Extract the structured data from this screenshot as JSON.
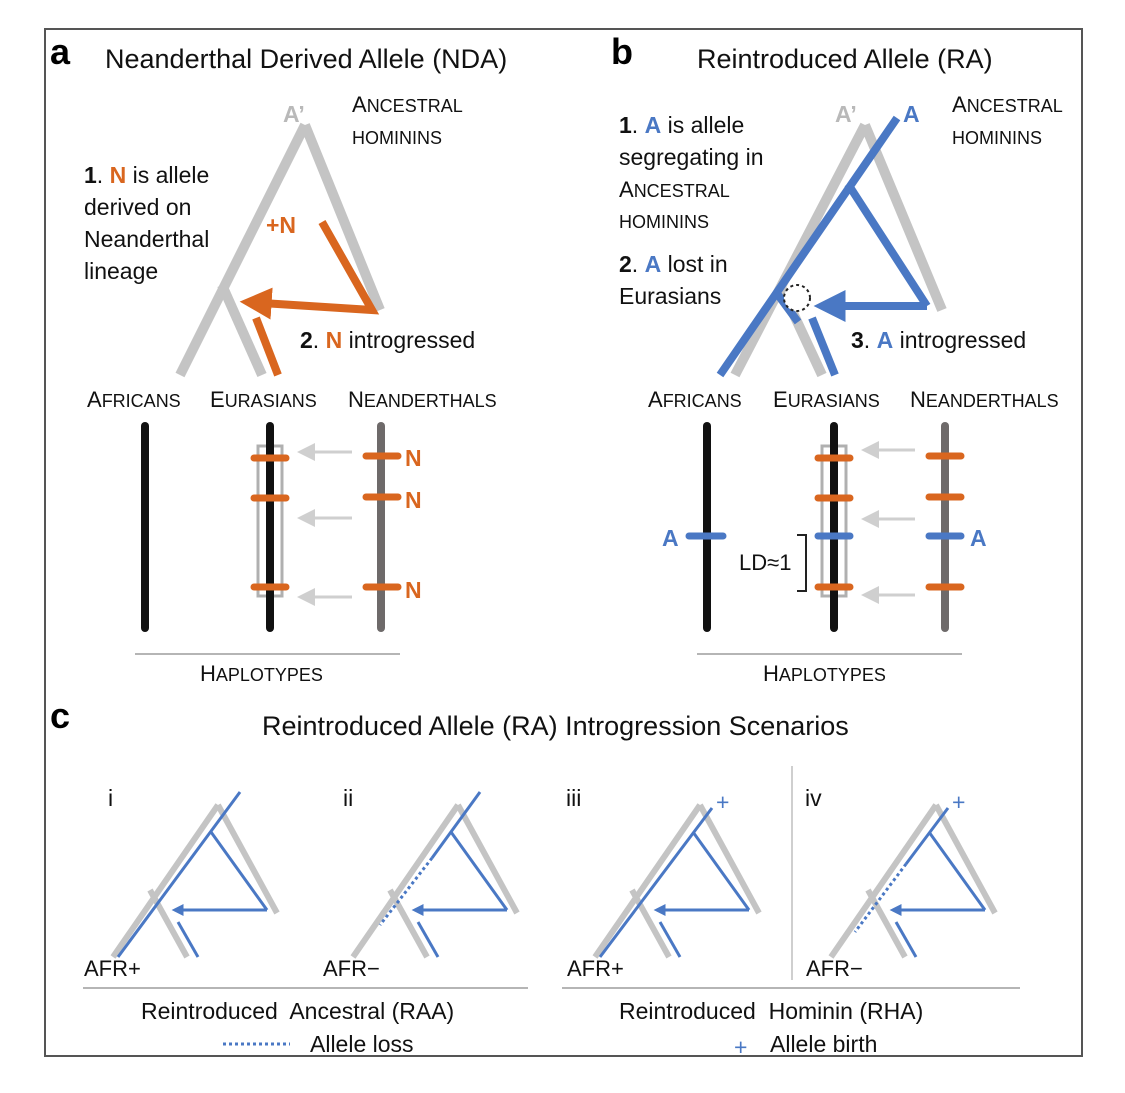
{
  "panel_a": {
    "letter": "a",
    "title": "Neanderthal Derived Allele (NDA)",
    "top_allele": "A’",
    "ancestral_1": "A",
    "ancestral_2": "NCESTRAL",
    "hominins": "HOMININS",
    "step1_num": "1",
    "step1_allele": "N",
    "step1_text_1": "is allele",
    "step1_text_2": "derived on",
    "step1_text_3": "Neanderthal",
    "step1_text_4": "lineage",
    "plus_n": "+N",
    "step2_num": "2",
    "step2_allele": "N",
    "step2_text": "introgressed",
    "pops": [
      {
        "big": "A",
        "small": "FRICANS"
      },
      {
        "big": "E",
        "small": "URASIANS"
      },
      {
        "big": "N",
        "small": "EANDERTHALS"
      }
    ],
    "allele_labels": [
      "N",
      "N",
      "N"
    ],
    "hap_big": "H",
    "hap_small": "APLOTYPES"
  },
  "panel_b": {
    "letter": "b",
    "title": "Reintroduced Allele (RA)",
    "top_grey": "A’",
    "top_blue": "A",
    "ancestral_1": "A",
    "ancestral_2": "NCESTRAL",
    "hominins": "HOMININS",
    "step1_num": "1",
    "step1_allele": "A",
    "step1_text_1": "is allele",
    "step1_text_2": "segregating in",
    "step1_text_3_big": "A",
    "step1_text_3_small": "NCESTRAL",
    "step1_text_4": "HOMININS",
    "step2_num": "2",
    "step2_allele": "A",
    "step2_text_1": "lost in",
    "step2_text_2": "Eurasians",
    "step3_num": "3",
    "step3_allele": "A",
    "step3_text": "introgressed",
    "pops": [
      {
        "big": "A",
        "small": "FRICANS"
      },
      {
        "big": "E",
        "small": "URASIANS"
      },
      {
        "big": "N",
        "small": "EANDERTHALS"
      }
    ],
    "afr_allele": "A",
    "nea_allele": "A",
    "ld": "LD≈1",
    "hap_big": "H",
    "hap_small": "APLOTYPES"
  },
  "panel_c": {
    "letter": "c",
    "title": "Reintroduced Allele (RA) Introgression Scenarios",
    "scenarios": [
      {
        "numeral": "i",
        "afr": "AFR+"
      },
      {
        "numeral": "ii",
        "afr": "AFR−"
      },
      {
        "numeral": "iii",
        "afr": "AFR+",
        "birth": "+"
      },
      {
        "numeral": "iv",
        "afr": "AFR−",
        "birth": "+"
      }
    ],
    "group_left": "Reintroduced  Ancestral (RAA)",
    "group_right": "Reintroduced  Hominin (RHA)",
    "legend_loss": "Allele loss",
    "legend_birth_symbol": "+",
    "legend_birth": "Allele birth"
  },
  "colors": {
    "orange": "#d9661f",
    "blue": "#4a78c4",
    "tree_grey": "#c4c4c4",
    "hap_black": "#111111",
    "hap_grey": "#6e6a6a",
    "arrow_grey": "#cfcfcf"
  }
}
